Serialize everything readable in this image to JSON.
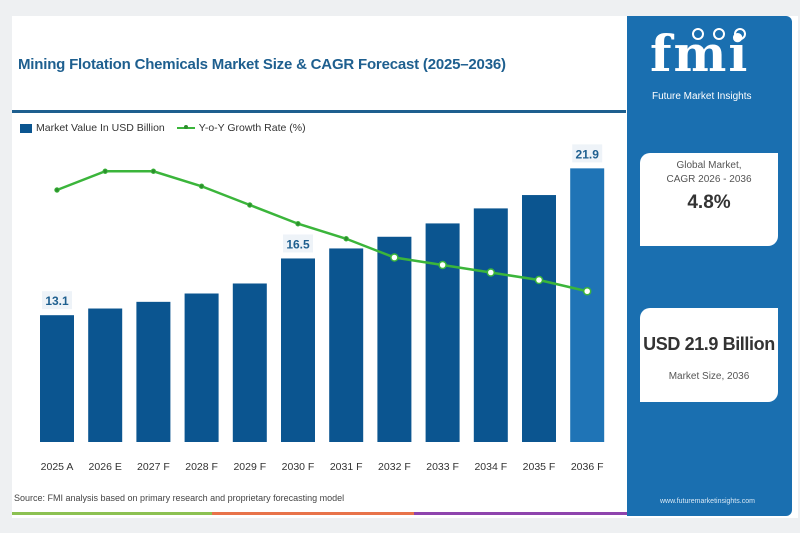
{
  "title": "Mining Flotation Chemicals Market Size & CAGR Forecast (2025–2036)",
  "legend": {
    "bar": "Market Value In USD Billion",
    "line": "Y-o-Y Growth Rate (%)"
  },
  "source": "Source: FMI analysis based on primary research and proprietary forecasting model",
  "sidebar": {
    "logo_text": "fmi",
    "logo_subtitle": "Future Market Insights",
    "cagr_label_line1": "Global Market,",
    "cagr_label_line2": "CAGR 2026 - 2036",
    "cagr_value": "4.8%",
    "size_value": "USD 21.9 Billion",
    "size_label": "Market Size, 2036",
    "website": "www.futuremarketinsights.com"
  },
  "colors": {
    "bar": "#0b5590",
    "bar_highlight": "#1f74b6",
    "line": "#3bb53b",
    "title": "#1e5f8f",
    "sidebar": "#1a6fb0",
    "strip": [
      "#8cc152",
      "#e8734a",
      "#8e44ad"
    ]
  },
  "chart_data": {
    "type": "bar",
    "title": "Mining Flotation Chemicals Market Size & CAGR Forecast (2025–2036)",
    "xlabel": "",
    "ylabel": "",
    "categories": [
      "2025 A",
      "2026 E",
      "2027 F",
      "2028 F",
      "2029 F",
      "2030 F",
      "2031 F",
      "2032 F",
      "2033 F",
      "2034 F",
      "2035 F",
      "2036 F"
    ],
    "series": [
      {
        "name": "Market Value In USD Billion",
        "type": "bar",
        "values": [
          13.1,
          13.5,
          13.9,
          14.4,
          15.0,
          16.5,
          17.1,
          17.8,
          18.6,
          19.5,
          20.3,
          21.9
        ]
      },
      {
        "name": "Y-o-Y Growth Rate (%)",
        "type": "line",
        "values": [
          5.6,
          6.1,
          6.1,
          5.7,
          5.2,
          4.7,
          4.3,
          3.8,
          3.6,
          3.4,
          3.2,
          2.9
        ]
      }
    ],
    "data_labels": [
      {
        "category": "2025 A",
        "text": "13.1"
      },
      {
        "category": "2030 F",
        "text": "16.5"
      },
      {
        "category": "2036 F",
        "text": "21.9"
      }
    ],
    "highlight_category": "2036 F",
    "ylim": [
      0,
      23
    ],
    "y2lim": [
      0,
      8
    ],
    "grid": false,
    "legend_position": "top-left"
  }
}
